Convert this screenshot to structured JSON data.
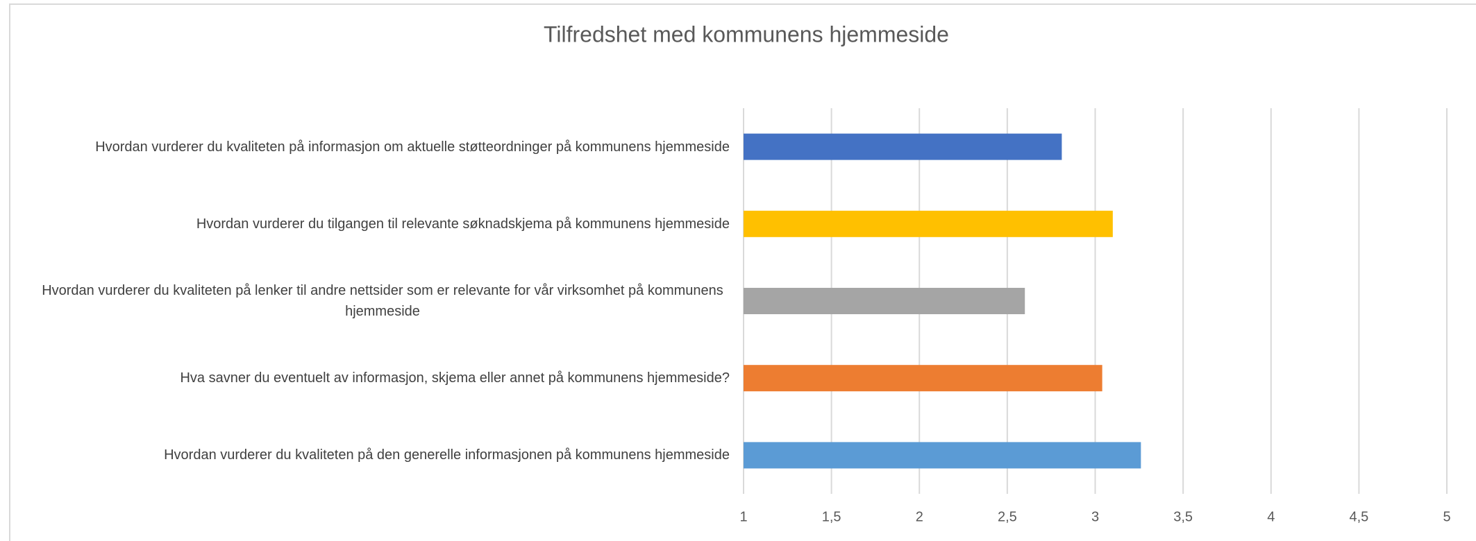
{
  "chart_data": {
    "type": "bar",
    "orientation": "horizontal",
    "title": "Tilfredshet med kommunens hjemmeside",
    "categories": [
      "Hvordan vurderer du kvaliteten på informasjon om aktuelle støtteordninger på kommunens hjemmeside",
      "Hvordan vurderer du tilgangen til relevante søknadskjema på kommunens hjemmeside",
      "Hvordan vurderer du kvaliteten på lenker til andre nettsider som er relevante for vår virksomhet på kommunens hjemmeside",
      "Hva savner du eventuelt av informasjon, skjema eller annet på kommunens hjemmeside?",
      "Hvordan vurderer du kvaliteten på den generelle informasjonen på kommunens hjemmeside"
    ],
    "values": [
      2.81,
      3.1,
      2.6,
      3.04,
      3.26
    ],
    "colors": [
      "#4472c4",
      "#ffc000",
      "#a5a5a5",
      "#ed7d31",
      "#5b9bd5"
    ],
    "xlim": [
      1,
      5
    ],
    "xticks": [
      1,
      {
        "value": 1.5,
        "label": "1,5"
      },
      2,
      {
        "value": 2.5,
        "label": "2,5"
      },
      3,
      {
        "value": 3.5,
        "label": "3,5"
      },
      4,
      {
        "value": 4.5,
        "label": "4,5"
      },
      5
    ],
    "grid": true
  }
}
